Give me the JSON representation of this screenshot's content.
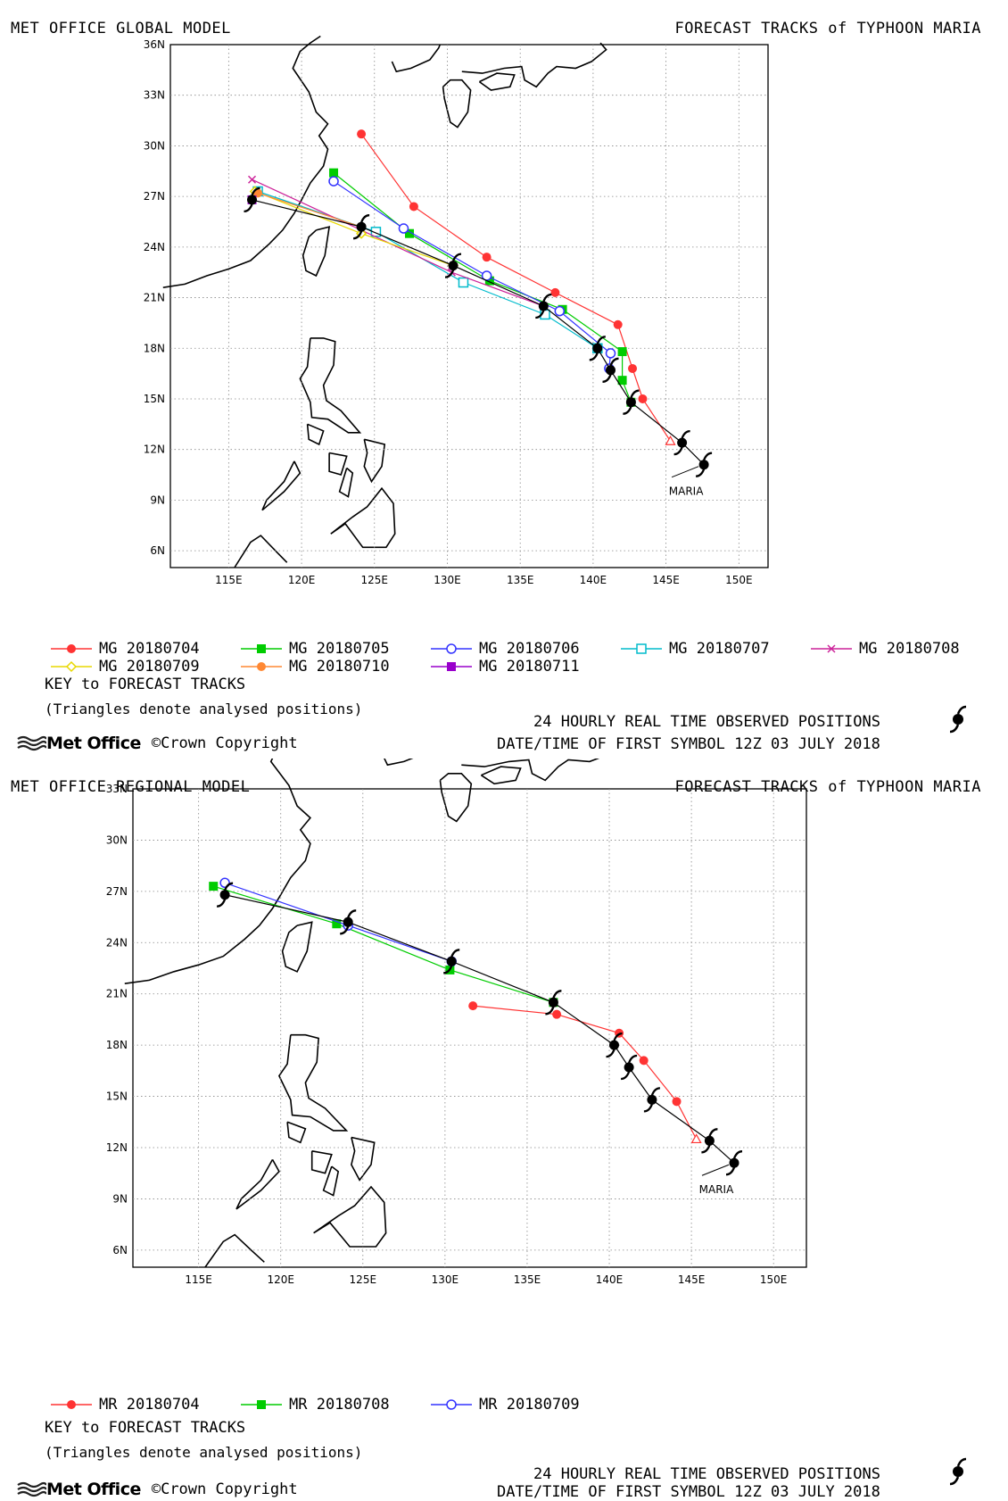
{
  "panels": [
    {
      "id": "global",
      "header_left": "MET OFFICE GLOBAL MODEL",
      "header_right": "FORECAST TRACKS of TYPHOON MARIA",
      "lat_ticks": [
        "36N",
        "33N",
        "30N",
        "27N",
        "24N",
        "21N",
        "18N",
        "15N",
        "12N",
        "9N",
        "6N"
      ],
      "lon_ticks": [
        "115E",
        "120E",
        "125E",
        "130E",
        "135E",
        "140E",
        "145E",
        "150E"
      ],
      "storm_label": "MARIA",
      "legend": [
        {
          "label": "MG 20180704",
          "color": "#ff3333",
          "marker": "circle-filled"
        },
        {
          "label": "MG 20180705",
          "color": "#00cc00",
          "marker": "square-filled"
        },
        {
          "label": "MG 20180706",
          "color": "#3333ff",
          "marker": "circle-open"
        },
        {
          "label": "MG 20180707",
          "color": "#00bbcc",
          "marker": "square-open"
        },
        {
          "label": "MG 20180708",
          "color": "#cc2299",
          "marker": "x"
        },
        {
          "label": "MG 20180709",
          "color": "#e8d800",
          "marker": "diamond-open"
        },
        {
          "label": "MG 20180710",
          "color": "#ff8833",
          "marker": "circle-filled"
        },
        {
          "label": "MG 20180711",
          "color": "#9900cc",
          "marker": "square-filled"
        }
      ],
      "key_title": "KEY to FORECAST TRACKS",
      "key_note": "(Triangles denote analysed positions)",
      "observed_label": "24 HOURLY REAL TIME OBSERVED POSITIONS",
      "first_symbol": "DATE/TIME OF FIRST SYMBOL 12Z 03 JULY 2018",
      "brand": "Met Office",
      "copyright": "©Crown Copyright"
    },
    {
      "id": "regional",
      "header_left": "MET OFFICE REGIONAL MODEL",
      "header_right": "FORECAST TRACKS of TYPHOON MARIA",
      "lat_ticks": [
        "33N",
        "30N",
        "27N",
        "24N",
        "21N",
        "18N",
        "15N",
        "12N",
        "9N",
        "6N"
      ],
      "lon_ticks": [
        "115E",
        "120E",
        "125E",
        "130E",
        "135E",
        "140E",
        "145E",
        "150E"
      ],
      "storm_label": "MARIA",
      "legend": [
        {
          "label": "MR 20180704",
          "color": "#ff3333",
          "marker": "circle-filled"
        },
        {
          "label": "MR 20180708",
          "color": "#00cc00",
          "marker": "square-filled"
        },
        {
          "label": "MR 20180709",
          "color": "#3333ff",
          "marker": "circle-open"
        }
      ],
      "key_title": "KEY to FORECAST TRACKS",
      "key_note": "(Triangles denote analysed positions)",
      "observed_label": "24 HOURLY REAL TIME OBSERVED POSITIONS",
      "first_symbol": "DATE/TIME OF FIRST SYMBOL 12Z 03 JULY 2018",
      "brand": "Met Office",
      "copyright": "©Crown Copyright"
    }
  ],
  "observed_track": [
    [
      147.6,
      11.1
    ],
    [
      146.1,
      12.4
    ],
    [
      142.6,
      14.8
    ],
    [
      141.2,
      16.7
    ],
    [
      140.3,
      18.0
    ],
    [
      136.6,
      20.5
    ],
    [
      130.4,
      22.9
    ],
    [
      124.1,
      25.2
    ],
    [
      116.6,
      26.8
    ]
  ],
  "global_tracks": [
    {
      "name": "MG 20180704",
      "color": "#ff3333",
      "marker": "circle-filled",
      "points": [
        [
          145.3,
          12.5
        ],
        [
          143.4,
          15.0
        ],
        [
          142.7,
          16.8
        ],
        [
          141.7,
          19.4
        ],
        [
          137.4,
          21.3
        ],
        [
          132.7,
          23.4
        ],
        [
          127.7,
          26.4
        ],
        [
          124.1,
          30.7
        ]
      ]
    },
    {
      "name": "MG 20180705",
      "color": "#00cc00",
      "marker": "square-filled",
      "points": [
        [
          142.6,
          14.8
        ],
        [
          142.0,
          16.1
        ],
        [
          142.0,
          17.8
        ],
        [
          137.9,
          20.3
        ],
        [
          132.9,
          22.0
        ],
        [
          127.4,
          24.8
        ],
        [
          122.2,
          28.4
        ]
      ]
    },
    {
      "name": "MG 20180706",
      "color": "#3333ff",
      "marker": "circle-open",
      "points": [
        [
          141.1,
          16.8
        ],
        [
          141.2,
          17.7
        ],
        [
          137.7,
          20.2
        ],
        [
          132.7,
          22.3
        ],
        [
          127.0,
          25.1
        ],
        [
          122.2,
          27.9
        ]
      ]
    },
    {
      "name": "MG 20180707",
      "color": "#00bbcc",
      "marker": "square-open",
      "points": [
        [
          140.3,
          18.0
        ],
        [
          136.7,
          20.0
        ],
        [
          131.1,
          21.9
        ],
        [
          125.1,
          24.9
        ],
        [
          117.0,
          27.3
        ]
      ]
    },
    {
      "name": "MG 20180708",
      "color": "#cc2299",
      "marker": "x",
      "points": [
        [
          136.6,
          20.5
        ],
        [
          130.3,
          22.5
        ],
        [
          124.1,
          25.0
        ],
        [
          116.6,
          28.0
        ]
      ]
    },
    {
      "name": "MG 20180709",
      "color": "#e8d800",
      "marker": "diamond-open",
      "points": [
        [
          130.4,
          22.9
        ],
        [
          124.1,
          24.8
        ],
        [
          116.8,
          27.3
        ]
      ]
    },
    {
      "name": "MG 20180710",
      "color": "#ff8833",
      "marker": "circle-filled",
      "points": [
        [
          124.1,
          25.2
        ],
        [
          117.0,
          27.2
        ]
      ]
    },
    {
      "name": "MG 20180711",
      "color": "#9900cc",
      "marker": "square-filled",
      "points": [
        [
          116.6,
          26.8
        ]
      ]
    }
  ],
  "regional_tracks": [
    {
      "name": "MR 20180704",
      "color": "#ff3333",
      "marker": "circle-filled",
      "points": [
        [
          145.3,
          12.5
        ],
        [
          144.1,
          14.7
        ],
        [
          142.1,
          17.1
        ],
        [
          140.6,
          18.7
        ],
        [
          136.8,
          19.8
        ],
        [
          131.7,
          20.3
        ]
      ]
    },
    {
      "name": "MR 20180708",
      "color": "#00cc00",
      "marker": "square-filled",
      "points": [
        [
          136.6,
          20.5
        ],
        [
          130.3,
          22.4
        ],
        [
          123.4,
          25.1
        ],
        [
          115.9,
          27.3
        ]
      ]
    },
    {
      "name": "MR 20180709",
      "color": "#3333ff",
      "marker": "circle-open",
      "points": [
        [
          130.4,
          22.9
        ],
        [
          124.1,
          25.0
        ],
        [
          116.6,
          27.5
        ]
      ]
    }
  ]
}
